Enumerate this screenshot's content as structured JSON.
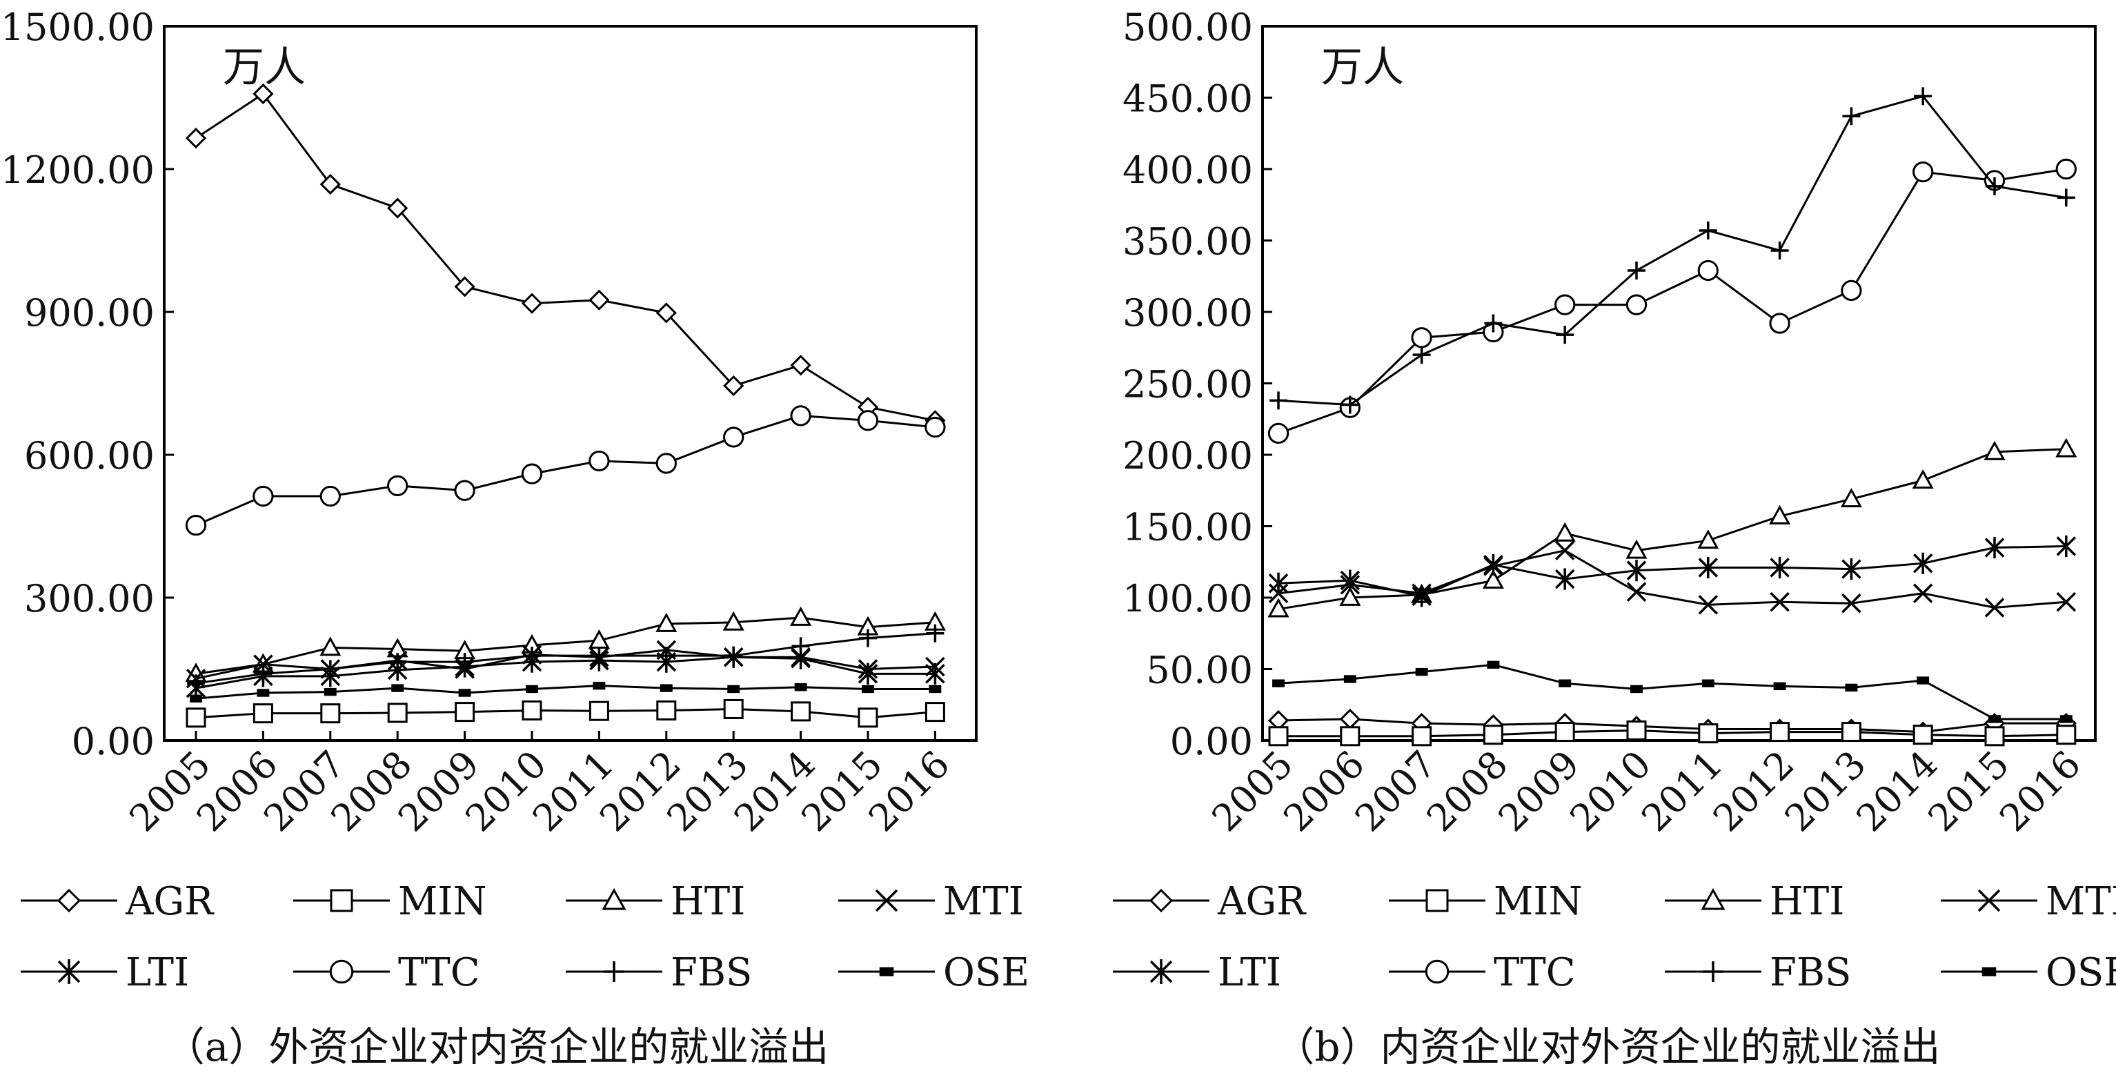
{
  "chart_data": [
    {
      "type": "line",
      "caption": "（a）外资企业对内资企业的就业溢出",
      "unit_label": "万人",
      "ylim": [
        0,
        1500
      ],
      "yticks": [
        "0.00",
        "300.00",
        "600.00",
        "900.00",
        "1200.00",
        "1500.00"
      ],
      "categories": [
        "2005",
        "2006",
        "2007",
        "2008",
        "2009",
        "2010",
        "2011",
        "2012",
        "2013",
        "2014",
        "2015",
        "2016"
      ],
      "series": [
        {
          "name": "AGR",
          "marker": "diamond",
          "values": [
            1265,
            1358,
            1168,
            1118,
            953,
            918,
            925,
            898,
            745,
            788,
            700,
            672
          ]
        },
        {
          "name": "MIN",
          "marker": "square",
          "values": [
            48,
            57,
            57,
            58,
            60,
            63,
            62,
            63,
            66,
            61,
            48,
            60
          ]
        },
        {
          "name": "HTI",
          "marker": "triangle",
          "values": [
            140,
            160,
            195,
            192,
            188,
            200,
            210,
            245,
            248,
            258,
            238,
            248
          ]
        },
        {
          "name": "MTI",
          "marker": "x",
          "values": [
            130,
            160,
            150,
            168,
            150,
            180,
            175,
            190,
            175,
            175,
            150,
            155
          ]
        },
        {
          "name": "LTI",
          "marker": "star",
          "values": [
            110,
            135,
            135,
            148,
            155,
            165,
            168,
            165,
            175,
            172,
            140,
            140
          ]
        },
        {
          "name": "TTC",
          "marker": "circle",
          "values": [
            452,
            513,
            513,
            535,
            525,
            560,
            587,
            582,
            637,
            682,
            672,
            658
          ]
        },
        {
          "name": "FBS",
          "marker": "plus",
          "values": [
            120,
            140,
            150,
            165,
            165,
            178,
            178,
            178,
            178,
            198,
            215,
            225
          ]
        },
        {
          "name": "OSE",
          "marker": "dash",
          "values": [
            88,
            100,
            102,
            110,
            100,
            108,
            115,
            110,
            108,
            112,
            108,
            108
          ]
        }
      ]
    },
    {
      "type": "line",
      "caption": "（b）内资企业对外资企业的就业溢出",
      "unit_label": "万人",
      "ylim": [
        0,
        500
      ],
      "yticks": [
        "0.00",
        "50.00",
        "100.00",
        "150.00",
        "200.00",
        "250.00",
        "300.00",
        "350.00",
        "400.00",
        "450.00",
        "500.00"
      ],
      "categories": [
        "2005",
        "2006",
        "2007",
        "2008",
        "2009",
        "2010",
        "2011",
        "2012",
        "2013",
        "2014",
        "2015",
        "2016"
      ],
      "series": [
        {
          "name": "AGR",
          "marker": "diamond",
          "values": [
            14,
            15,
            12,
            11,
            12,
            10,
            8,
            8,
            8,
            6,
            12,
            12
          ]
        },
        {
          "name": "MIN",
          "marker": "square",
          "values": [
            3,
            3,
            3,
            4,
            6,
            7,
            5,
            6,
            6,
            4,
            3,
            4
          ]
        },
        {
          "name": "HTI",
          "marker": "triangle",
          "values": [
            92,
            100,
            102,
            112,
            145,
            133,
            140,
            157,
            169,
            182,
            202,
            204
          ]
        },
        {
          "name": "MTI",
          "marker": "x",
          "values": [
            103,
            109,
            103,
            122,
            133,
            104,
            95,
            97,
            96,
            103,
            93,
            97
          ]
        },
        {
          "name": "LTI",
          "marker": "star",
          "values": [
            110,
            112,
            101,
            123,
            113,
            119,
            121,
            121,
            120,
            124,
            135,
            136
          ]
        },
        {
          "name": "TTC",
          "marker": "circle",
          "values": [
            215,
            233,
            282,
            286,
            305,
            305,
            329,
            292,
            315,
            398,
            392,
            400
          ]
        },
        {
          "name": "FBS",
          "marker": "plus",
          "values": [
            238,
            235,
            270,
            292,
            284,
            329,
            357,
            343,
            437,
            451,
            388,
            380
          ]
        },
        {
          "name": "OSE",
          "marker": "dash",
          "values": [
            40,
            43,
            48,
            53,
            40,
            36,
            40,
            38,
            37,
            42,
            15,
            15
          ]
        }
      ]
    }
  ]
}
